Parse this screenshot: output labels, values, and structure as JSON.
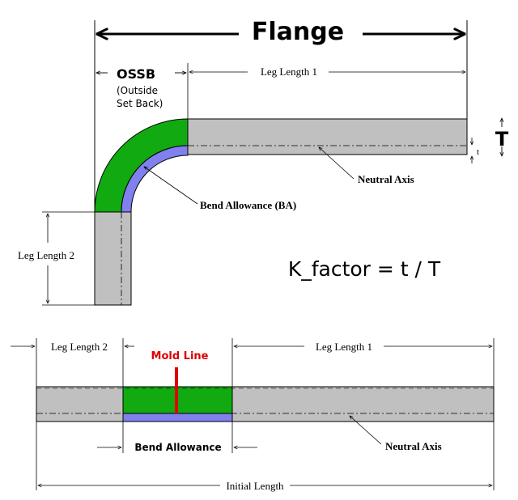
{
  "labels": {
    "flange": "Flange",
    "ossb": "OSSB",
    "ossb_line1": "(Outside",
    "ossb_line2": "Set Back)",
    "leg_length_1": "Leg Length 1",
    "leg_length_2": "Leg Length 2",
    "T": "T",
    "t": "t",
    "neutral_axis": "Neutral Axis",
    "bend_allowance_ba": "Bend Allowance (BA)",
    "k_factor": "K_factor = t / T",
    "mold_line": "Mold Line",
    "bend_allowance": "Bend Allowance",
    "initial_length": "Initial Length"
  },
  "colors": {
    "bar_fill": "#c0c0c0",
    "bend_green": "#11aa11",
    "bend_blue": "#8080ee",
    "mold_line_red": "#dd0000",
    "line": "#000000"
  }
}
